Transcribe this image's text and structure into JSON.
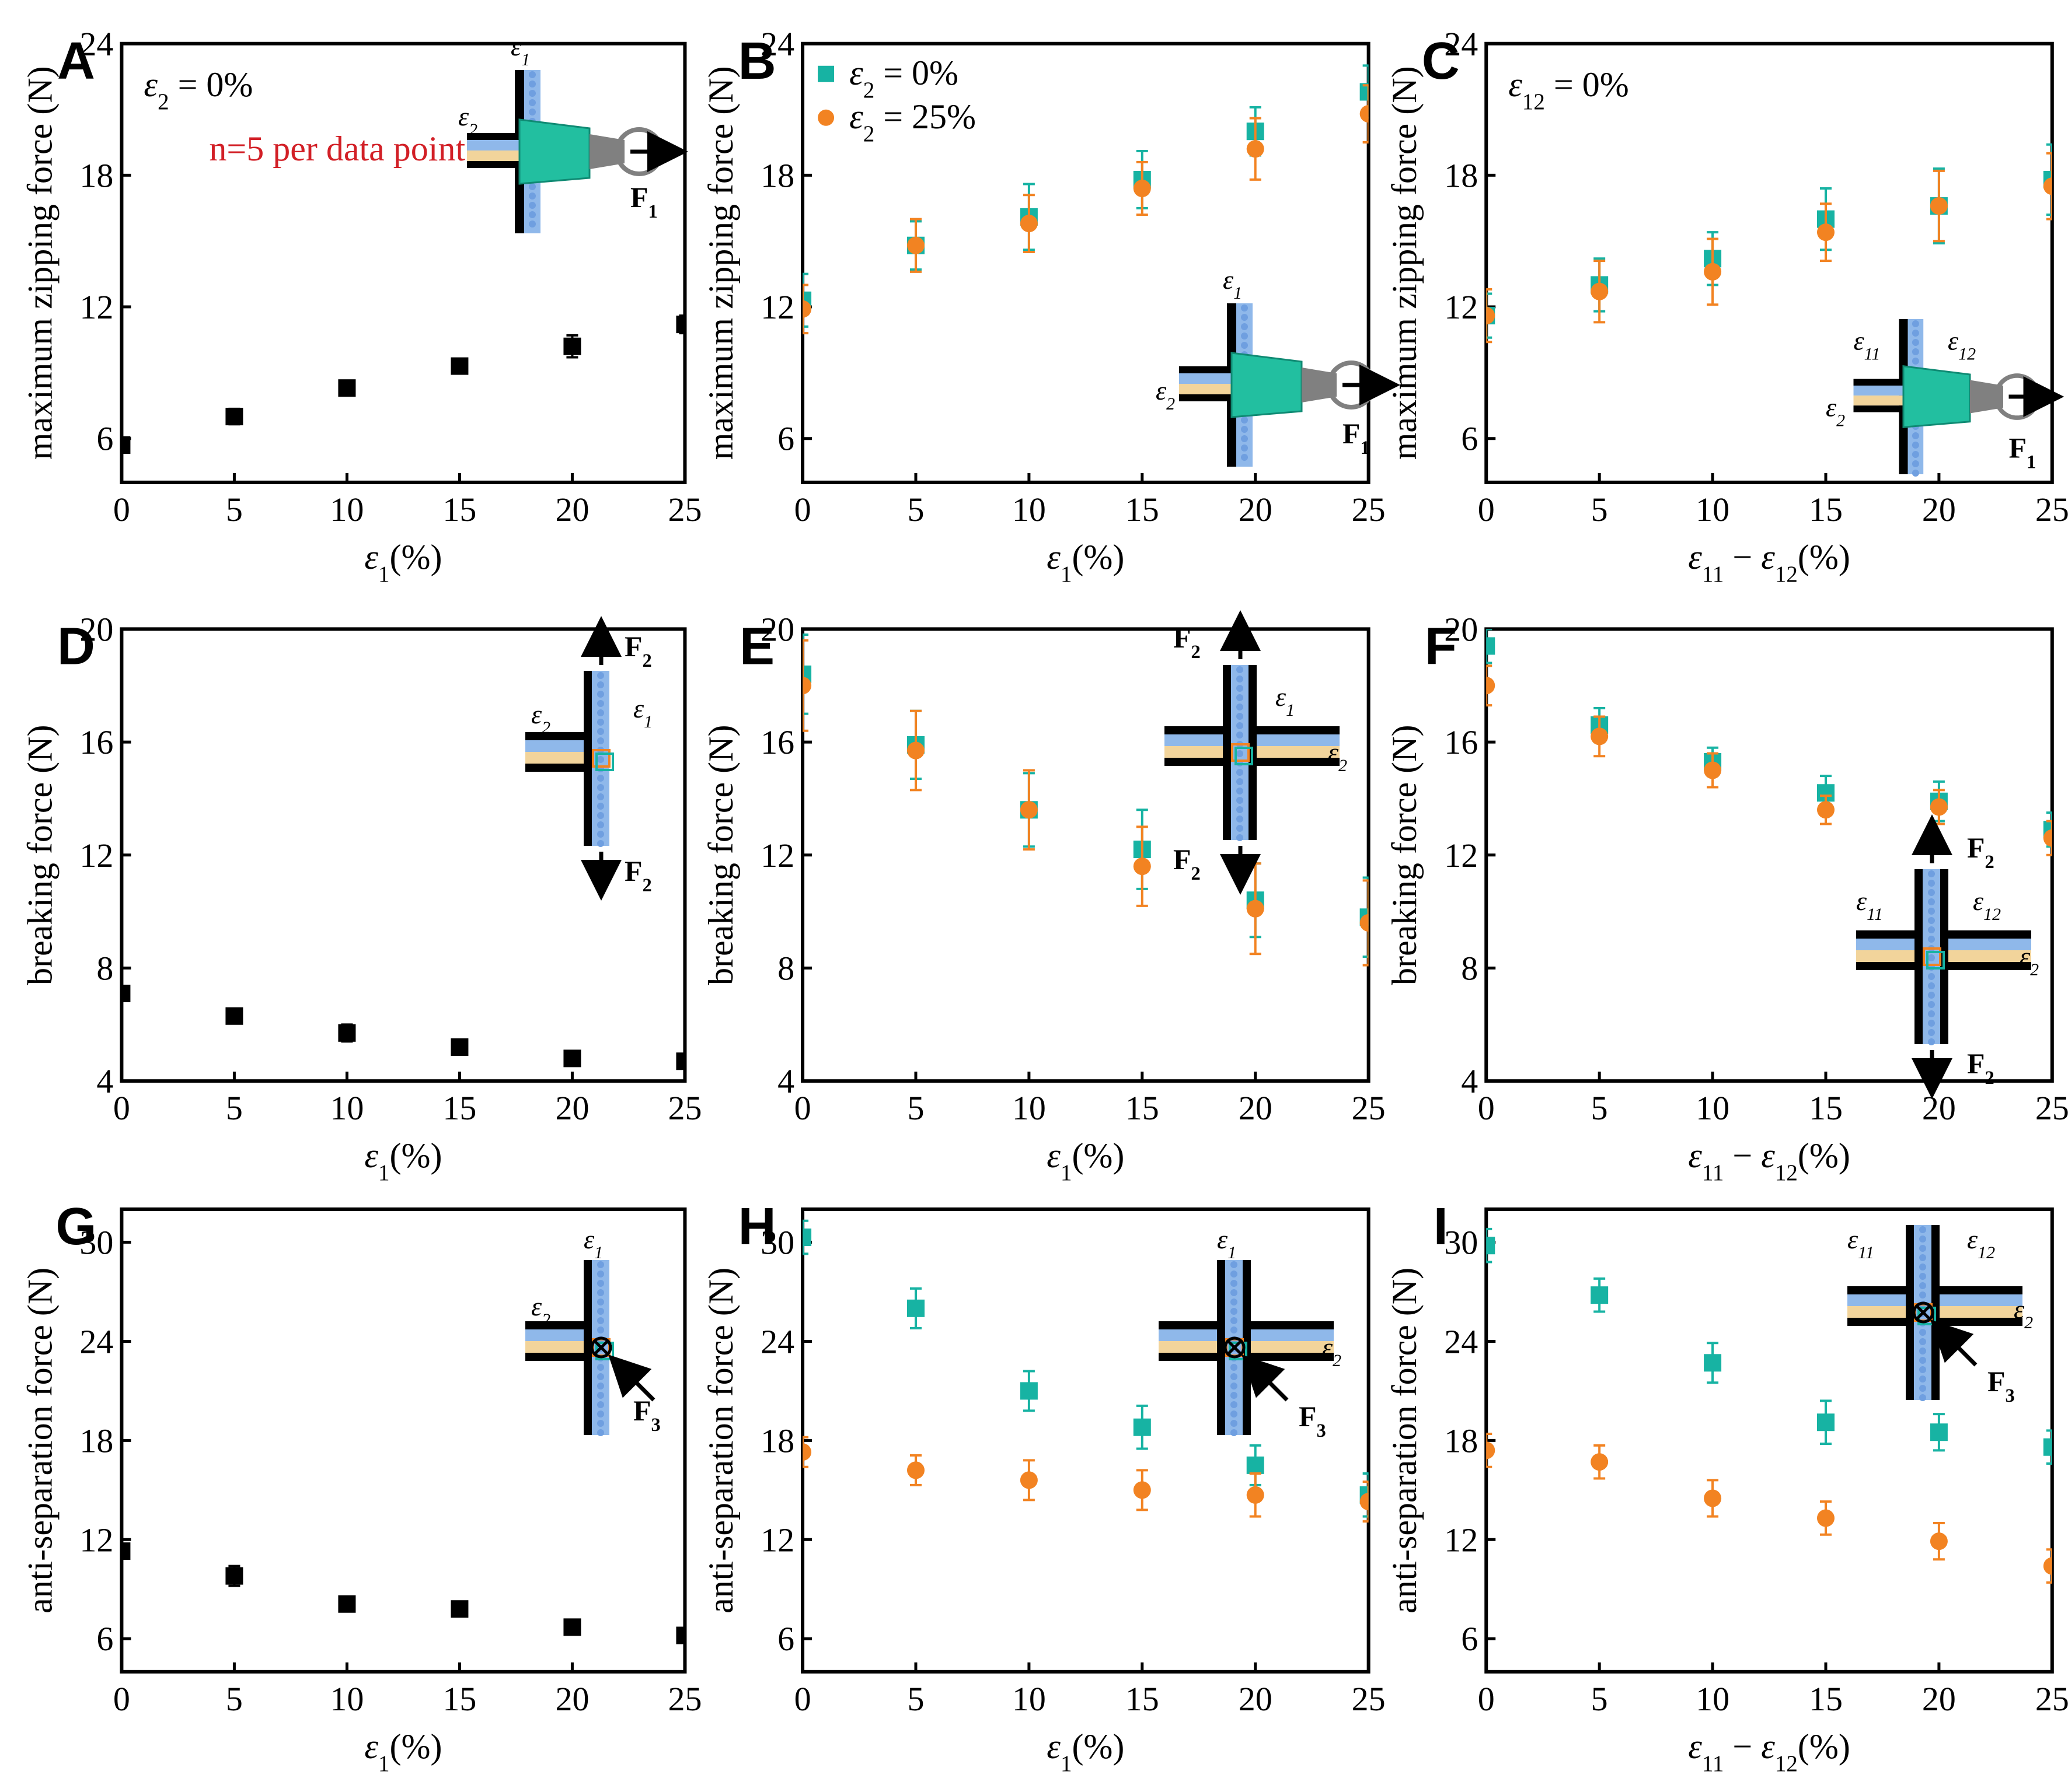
{
  "colors": {
    "teal": "#17b3a3",
    "orange": "#f28322",
    "black": "#000000",
    "red": "#d21f26",
    "blue": "#8fb8ea",
    "tan": "#f2d49b",
    "green": "#22bfa0",
    "gray": "#808080"
  },
  "notes": {
    "sample_size": "n=5 per data point"
  },
  "inset_labels": {
    "e1": "ε1",
    "e2": "ε2",
    "e11": "ε11",
    "e12": "ε12",
    "F1": "F1",
    "F2": "F2",
    "F3": "F3"
  },
  "chart_data": [
    {
      "panel": "A",
      "type": "scatter",
      "xlabel": "ε1(%)",
      "ylabel": "maximum zipping force (N)",
      "xlim": [
        0,
        25
      ],
      "ylim": [
        4,
        24
      ],
      "xticks": [
        "0",
        "5",
        "10",
        "15",
        "20",
        "25"
      ],
      "yticks": [
        "6",
        "12",
        "18",
        "24"
      ],
      "annotation": "ε2 = 0%",
      "series": [
        {
          "name": "",
          "marker": "square",
          "color": "#000000",
          "x": [
            0,
            5,
            10,
            15,
            20,
            25
          ],
          "y": [
            5.7,
            7.0,
            8.3,
            9.3,
            10.2,
            11.2
          ],
          "err": [
            0.3,
            0.35,
            0.25,
            0.25,
            0.5,
            0.4
          ]
        }
      ]
    },
    {
      "panel": "B",
      "type": "scatter",
      "xlabel": "ε1(%)",
      "ylabel": "maximum zipping force (N)",
      "xlim": [
        0,
        25
      ],
      "ylim": [
        4,
        24
      ],
      "xticks": [
        "0",
        "5",
        "10",
        "15",
        "20",
        "25"
      ],
      "yticks": [
        "6",
        "12",
        "18",
        "24"
      ],
      "legend": {
        "placement": "top-left"
      },
      "series": [
        {
          "name": "ε2 = 0%",
          "marker": "square",
          "color": "#17b3a3",
          "x": [
            0,
            5,
            10,
            15,
            20,
            25
          ],
          "y": [
            12.3,
            14.8,
            16.1,
            17.8,
            20.0,
            21.8
          ],
          "err": [
            1.2,
            1.1,
            1.5,
            1.3,
            1.1,
            1.2
          ]
        },
        {
          "name": "ε2 = 25%",
          "marker": "circle",
          "color": "#f28322",
          "x": [
            0,
            5,
            10,
            15,
            20,
            25
          ],
          "y": [
            11.9,
            14.8,
            15.8,
            17.4,
            19.2,
            20.8
          ],
          "err": [
            1.1,
            1.2,
            1.3,
            1.2,
            1.4,
            1.3
          ]
        }
      ]
    },
    {
      "panel": "C",
      "type": "scatter",
      "xlabel": "ε11 − ε12(%)",
      "ylabel": "maximum zipping force (N)",
      "xlim": [
        0,
        25
      ],
      "ylim": [
        4,
        24
      ],
      "xticks": [
        "0",
        "5",
        "10",
        "15",
        "20",
        "25"
      ],
      "yticks": [
        "6",
        "12",
        "18",
        "24"
      ],
      "annotation": "ε12 = 0%",
      "series": [
        {
          "name": "ε2 = 0%",
          "marker": "square",
          "color": "#17b3a3",
          "x": [
            0,
            5,
            10,
            15,
            20,
            25
          ],
          "y": [
            11.6,
            13.0,
            14.2,
            16.0,
            16.6,
            17.8
          ],
          "err": [
            1.0,
            1.2,
            1.2,
            1.4,
            1.7,
            1.6
          ]
        },
        {
          "name": "ε2 = 25%",
          "marker": "circle",
          "color": "#f28322",
          "x": [
            0,
            5,
            10,
            15,
            20,
            25
          ],
          "y": [
            11.6,
            12.7,
            13.6,
            15.4,
            16.6,
            17.5
          ],
          "err": [
            1.2,
            1.4,
            1.5,
            1.3,
            1.6,
            1.5
          ]
        }
      ]
    },
    {
      "panel": "D",
      "type": "scatter",
      "xlabel": "ε1(%)",
      "ylabel": "breaking force (N)",
      "xlim": [
        0,
        25
      ],
      "ylim": [
        4,
        20
      ],
      "xticks": [
        "0",
        "5",
        "10",
        "15",
        "20",
        "25"
      ],
      "yticks": [
        "4",
        "8",
        "12",
        "16",
        "20"
      ],
      "series": [
        {
          "name": "",
          "marker": "square",
          "color": "#000000",
          "x": [
            0,
            5,
            10,
            15,
            20,
            25
          ],
          "y": [
            7.1,
            6.3,
            5.7,
            5.2,
            4.8,
            4.7
          ],
          "err": [
            0.2,
            0.25,
            0.3,
            0.2,
            0.25,
            0.2
          ]
        }
      ]
    },
    {
      "panel": "E",
      "type": "scatter",
      "xlabel": "ε1(%)",
      "ylabel": "breaking force (N)",
      "xlim": [
        0,
        25
      ],
      "ylim": [
        4,
        20
      ],
      "xticks": [
        "0",
        "5",
        "10",
        "15",
        "20",
        "25"
      ],
      "yticks": [
        "4",
        "8",
        "12",
        "16",
        "20"
      ],
      "series": [
        {
          "name": "ε2 = 0%",
          "marker": "square",
          "color": "#17b3a3",
          "x": [
            0,
            5,
            10,
            15,
            20,
            25
          ],
          "y": [
            18.4,
            15.9,
            13.6,
            12.2,
            10.4,
            9.8
          ],
          "err": [
            1.4,
            1.2,
            1.3,
            1.4,
            1.3,
            1.4
          ]
        },
        {
          "name": "ε2 = 25%",
          "marker": "circle",
          "color": "#f28322",
          "x": [
            0,
            5,
            10,
            15,
            20,
            25
          ],
          "y": [
            18.0,
            15.7,
            13.6,
            11.6,
            10.1,
            9.6
          ],
          "err": [
            1.6,
            1.4,
            1.4,
            1.4,
            1.6,
            1.5
          ]
        }
      ]
    },
    {
      "panel": "F",
      "type": "scatter",
      "xlabel": "ε11 − ε12(%)",
      "ylabel": "breaking force (N)",
      "xlim": [
        0,
        25
      ],
      "ylim": [
        4,
        20
      ],
      "xticks": [
        "0",
        "5",
        "10",
        "15",
        "20",
        "25"
      ],
      "yticks": [
        "4",
        "8",
        "12",
        "16",
        "20"
      ],
      "series": [
        {
          "name": "ε2 = 0%",
          "marker": "square",
          "color": "#17b3a3",
          "x": [
            0,
            5,
            10,
            15,
            20,
            25
          ],
          "y": [
            19.4,
            16.6,
            15.3,
            14.2,
            13.9,
            12.9
          ],
          "err": [
            0.6,
            0.6,
            0.5,
            0.6,
            0.7,
            0.6
          ]
        },
        {
          "name": "ε2 = 25%",
          "marker": "circle",
          "color": "#f28322",
          "x": [
            0,
            5,
            10,
            15,
            20,
            25
          ],
          "y": [
            18.0,
            16.2,
            15.0,
            13.6,
            13.7,
            12.6
          ],
          "err": [
            0.7,
            0.7,
            0.6,
            0.5,
            0.6,
            0.6
          ]
        }
      ]
    },
    {
      "panel": "G",
      "type": "scatter",
      "xlabel": "ε1(%)",
      "ylabel": "anti-separation force (N)",
      "xlim": [
        0,
        25
      ],
      "ylim": [
        4,
        32
      ],
      "xticks": [
        "0",
        "5",
        "10",
        "15",
        "20",
        "25"
      ],
      "yticks": [
        "6",
        "12",
        "18",
        "24",
        "30"
      ],
      "series": [
        {
          "name": "",
          "marker": "square",
          "color": "#000000",
          "x": [
            0,
            5,
            10,
            15,
            20,
            25
          ],
          "y": [
            11.3,
            9.8,
            8.1,
            7.8,
            6.7,
            6.2
          ],
          "err": [
            0.4,
            0.6,
            0.3,
            0.3,
            0.4,
            0.3
          ]
        }
      ]
    },
    {
      "panel": "H",
      "type": "scatter",
      "xlabel": "ε1(%)",
      "ylabel": "anti-separation force (N)",
      "xlim": [
        0,
        25
      ],
      "ylim": [
        4,
        32
      ],
      "xticks": [
        "0",
        "5",
        "10",
        "15",
        "20",
        "25"
      ],
      "yticks": [
        "6",
        "12",
        "18",
        "24",
        "30"
      ],
      "series": [
        {
          "name": "ε2 = 0%",
          "marker": "square",
          "color": "#17b3a3",
          "x": [
            0,
            5,
            10,
            15,
            20,
            25
          ],
          "y": [
            30.3,
            26.0,
            21.0,
            18.8,
            16.5,
            14.7
          ],
          "err": [
            1.0,
            1.2,
            1.2,
            1.3,
            1.2,
            1.3
          ]
        },
        {
          "name": "ε2 = 25%",
          "marker": "circle",
          "color": "#f28322",
          "x": [
            0,
            5,
            10,
            15,
            20,
            25
          ],
          "y": [
            17.3,
            16.2,
            15.6,
            15.0,
            14.7,
            14.3
          ],
          "err": [
            0.9,
            0.9,
            1.2,
            1.2,
            1.3,
            1.2
          ]
        }
      ]
    },
    {
      "panel": "I",
      "type": "scatter",
      "xlabel": "ε11 − ε12(%)",
      "ylabel": "anti-separation force (N)",
      "xlim": [
        0,
        25
      ],
      "ylim": [
        4,
        32
      ],
      "xticks": [
        "0",
        "5",
        "10",
        "15",
        "20",
        "25"
      ],
      "yticks": [
        "6",
        "12",
        "18",
        "24",
        "30"
      ],
      "series": [
        {
          "name": "ε2 = 0%",
          "marker": "square",
          "color": "#17b3a3",
          "x": [
            0,
            5,
            10,
            15,
            20,
            25
          ],
          "y": [
            29.8,
            26.8,
            22.7,
            19.1,
            18.5,
            17.6
          ],
          "err": [
            1.0,
            1.0,
            1.2,
            1.3,
            1.1,
            1.0
          ]
        },
        {
          "name": "ε2 = 25%",
          "marker": "circle",
          "color": "#f28322",
          "x": [
            0,
            5,
            10,
            15,
            20,
            25
          ],
          "y": [
            17.4,
            16.7,
            14.5,
            13.3,
            11.9,
            10.4
          ],
          "err": [
            1.0,
            1.0,
            1.1,
            1.0,
            1.1,
            1.0
          ]
        }
      ]
    }
  ]
}
